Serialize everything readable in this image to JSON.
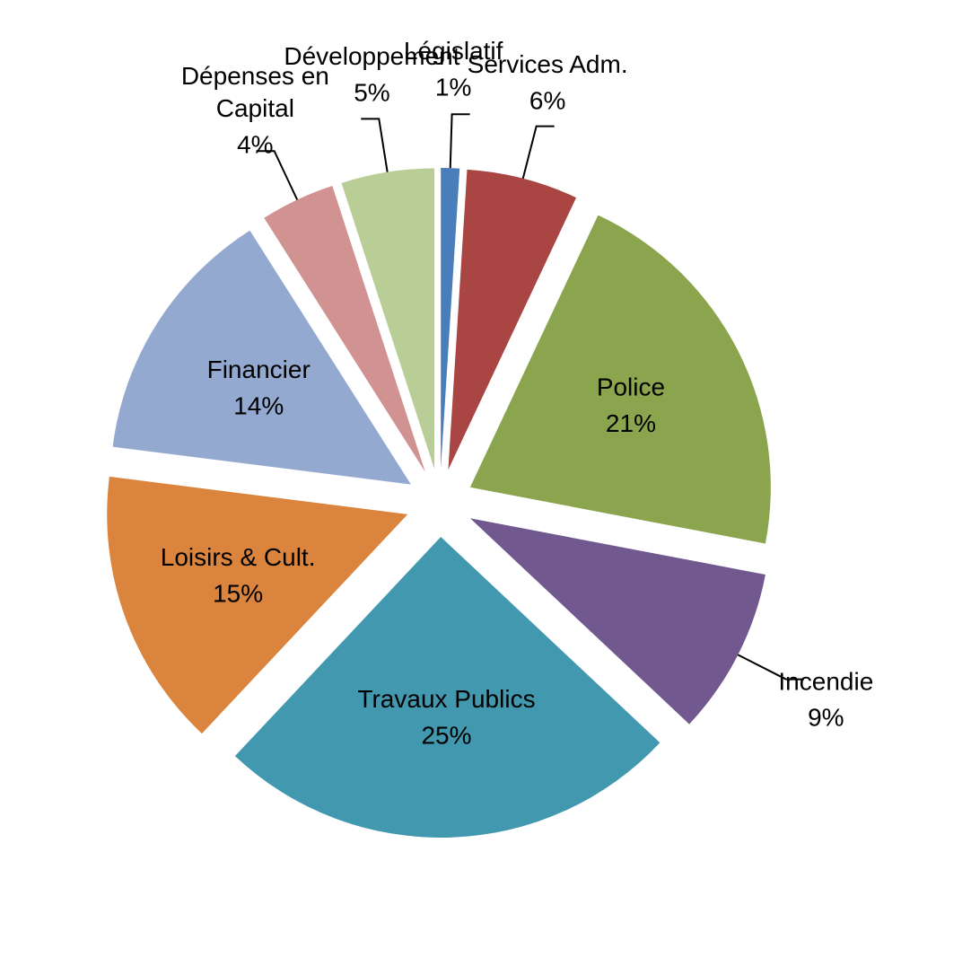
{
  "chart_data": {
    "type": "pie",
    "categories": [
      "Législatif",
      "Services Adm.",
      "Police",
      "Incendie",
      "Travaux Publics",
      "Loisirs & Cult.",
      "Financier",
      "Dépenses en\nCapital",
      "Développement"
    ],
    "values": [
      1,
      6,
      21,
      9,
      25,
      15,
      14,
      4,
      5
    ],
    "value_labels": [
      "1%",
      "6%",
      "21%",
      "9%",
      "25%",
      "15%",
      "14%",
      "4%",
      "5%"
    ],
    "colors": [
      "#4a7ebb",
      "#a94644",
      "#8ba54e",
      "#71588f",
      "#4298af",
      "#db843d",
      "#93a9d0",
      "#d09392",
      "#b9cd96"
    ],
    "exploded": true
  }
}
